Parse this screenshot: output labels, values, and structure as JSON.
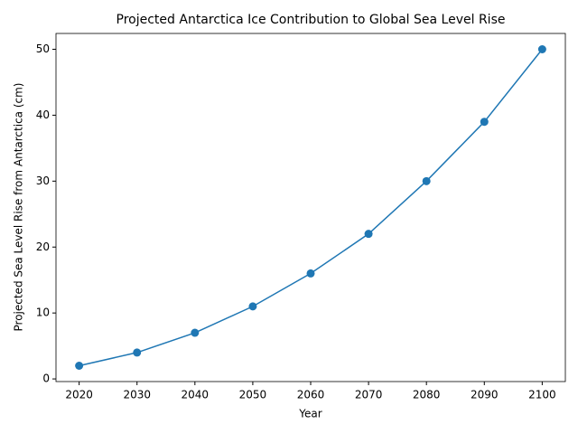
{
  "chart_data": {
    "type": "line",
    "title": "Projected Antarctica Ice Contribution to Global Sea Level Rise",
    "x_label": "Year",
    "y_label": "Projected Sea Level Rise from Antarctica (cm)",
    "x": [
      2020,
      2030,
      2040,
      2050,
      2060,
      2070,
      2080,
      2090,
      2100
    ],
    "values": [
      2,
      4,
      7,
      11,
      16,
      22,
      30,
      39,
      50
    ],
    "color": "#1f77b4",
    "markers": true,
    "xlim": [
      2016,
      2104
    ],
    "xticks": [
      2020,
      2030,
      2040,
      2050,
      2060,
      2070,
      2080,
      2090,
      2100
    ],
    "ylim": [
      -0.4,
      52.4
    ],
    "yticks": [
      0,
      10,
      20,
      30,
      40,
      50
    ],
    "grid": false
  }
}
